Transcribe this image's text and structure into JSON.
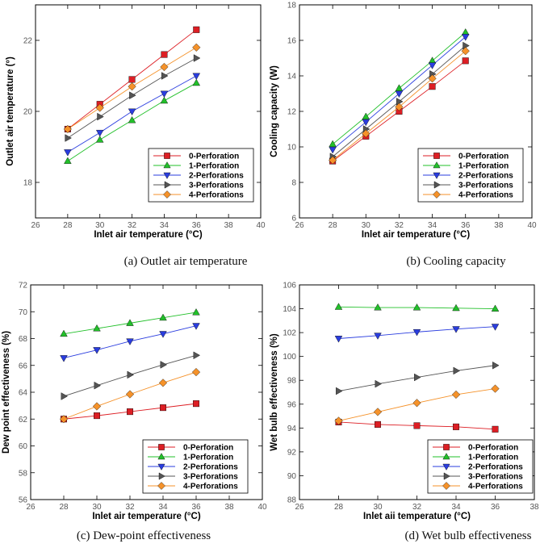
{
  "chart_data": [
    {
      "type": "line",
      "title": "",
      "caption": "(a) Outlet air temperature",
      "xlabel": "Inlet air temperature (°C)",
      "ylabel": "Outlet air temperature (°)",
      "xlim": [
        26,
        40
      ],
      "ylim": [
        17,
        23
      ],
      "xticks": [
        26,
        28,
        30,
        32,
        34,
        36,
        38,
        40
      ],
      "yticks": [
        18,
        20,
        22
      ],
      "x": [
        28,
        30,
        32,
        34,
        36
      ],
      "series": [
        {
          "name": "0-Perforation",
          "color": "#dd1e24",
          "marker": "square",
          "values": [
            19.5,
            20.2,
            20.9,
            21.6,
            22.3
          ]
        },
        {
          "name": "1-Perforation",
          "color": "#22c02a",
          "marker": "triangle-up",
          "values": [
            18.6,
            19.2,
            19.75,
            20.3,
            20.8
          ]
        },
        {
          "name": "2-Perforations",
          "color": "#2a3ddf",
          "marker": "triangle-down",
          "values": [
            18.85,
            19.4,
            20.0,
            20.5,
            21.0
          ]
        },
        {
          "name": "3-Perforations",
          "color": "#555555",
          "marker": "triangle-right",
          "values": [
            19.25,
            19.85,
            20.45,
            21.0,
            21.5
          ]
        },
        {
          "name": "4-Perforations",
          "color": "#f5922a",
          "marker": "diamond",
          "values": [
            19.5,
            20.1,
            20.7,
            21.25,
            21.8
          ]
        }
      ]
    },
    {
      "type": "line",
      "title": "",
      "caption": "(b) Cooling capacity",
      "xlabel": "Inlet air temperature (°C)",
      "ylabel": "Cooling capacity (W)",
      "xlim": [
        26,
        40
      ],
      "ylim": [
        6,
        18
      ],
      "xticks": [
        26,
        28,
        30,
        32,
        34,
        36,
        38,
        40
      ],
      "yticks": [
        6,
        8,
        10,
        12,
        14,
        16,
        18
      ],
      "x": [
        28,
        30,
        32,
        34,
        36
      ],
      "series": [
        {
          "name": "0-Perforation",
          "color": "#dd1e24",
          "marker": "square",
          "values": [
            9.2,
            10.6,
            12.0,
            13.4,
            14.85
          ]
        },
        {
          "name": "1-Perforation",
          "color": "#22c02a",
          "marker": "triangle-up",
          "values": [
            10.15,
            11.7,
            13.3,
            14.85,
            16.45
          ]
        },
        {
          "name": "2-Perforations",
          "color": "#2a3ddf",
          "marker": "triangle-down",
          "values": [
            9.85,
            11.4,
            13.0,
            14.6,
            16.2
          ]
        },
        {
          "name": "3-Perforations",
          "color": "#555555",
          "marker": "triangle-right",
          "values": [
            9.45,
            11.0,
            12.55,
            14.1,
            15.7
          ]
        },
        {
          "name": "4-Perforations",
          "color": "#f5922a",
          "marker": "diamond",
          "values": [
            9.25,
            10.75,
            12.25,
            13.85,
            15.4
          ]
        }
      ]
    },
    {
      "type": "line",
      "title": "",
      "caption": "(c) Dew-point effectiveness",
      "xlabel": "Inlet air temperature (°C)",
      "ylabel": "Dew point effectiveness (%)",
      "xlim": [
        26,
        40
      ],
      "ylim": [
        56,
        72
      ],
      "xticks": [
        26,
        28,
        30,
        32,
        34,
        36,
        38,
        40
      ],
      "yticks": [
        56,
        58,
        60,
        62,
        64,
        66,
        68,
        70,
        72
      ],
      "x": [
        28,
        30,
        32,
        34,
        36
      ],
      "series": [
        {
          "name": "0-Perforation",
          "color": "#dd1e24",
          "marker": "square",
          "values": [
            62.0,
            62.25,
            62.55,
            62.85,
            63.15
          ]
        },
        {
          "name": "1-Perforation",
          "color": "#22c02a",
          "marker": "triangle-up",
          "values": [
            68.35,
            68.75,
            69.15,
            69.55,
            69.95
          ]
        },
        {
          "name": "2-Perforations",
          "color": "#2a3ddf",
          "marker": "triangle-down",
          "values": [
            66.55,
            67.15,
            67.8,
            68.35,
            68.95
          ]
        },
        {
          "name": "3-Perforations",
          "color": "#555555",
          "marker": "triangle-right",
          "values": [
            63.7,
            64.5,
            65.3,
            66.05,
            66.75
          ]
        },
        {
          "name": "4-Perforations",
          "color": "#f5922a",
          "marker": "diamond",
          "values": [
            62.0,
            62.95,
            63.85,
            64.7,
            65.5
          ]
        }
      ]
    },
    {
      "type": "line",
      "title": "",
      "caption": "(d) Wet bulb effectiveness",
      "xlabel": "Inlet aii temperature (°C)",
      "ylabel": "Wet bulb effectiveness (%)",
      "xlim": [
        26,
        38
      ],
      "ylim": [
        88,
        106
      ],
      "xticks": [
        26,
        28,
        30,
        32,
        34,
        36,
        38
      ],
      "yticks": [
        88,
        90,
        92,
        94,
        96,
        98,
        100,
        102,
        104,
        106
      ],
      "x": [
        28,
        30,
        32,
        34,
        36
      ],
      "series": [
        {
          "name": "0-Perforation",
          "color": "#dd1e24",
          "marker": "square",
          "values": [
            94.5,
            94.3,
            94.2,
            94.1,
            93.9
          ]
        },
        {
          "name": "1-Perforation",
          "color": "#22c02a",
          "marker": "triangle-up",
          "values": [
            104.15,
            104.1,
            104.1,
            104.05,
            104.0
          ]
        },
        {
          "name": "2-Perforations",
          "color": "#2a3ddf",
          "marker": "triangle-down",
          "values": [
            101.5,
            101.75,
            102.05,
            102.3,
            102.5
          ]
        },
        {
          "name": "3-Perforations",
          "color": "#555555",
          "marker": "triangle-right",
          "values": [
            97.1,
            97.7,
            98.25,
            98.8,
            99.25
          ]
        },
        {
          "name": "4-Perforations",
          "color": "#f5922a",
          "marker": "diamond",
          "values": [
            94.6,
            95.35,
            96.1,
            96.8,
            97.3
          ]
        }
      ]
    }
  ]
}
